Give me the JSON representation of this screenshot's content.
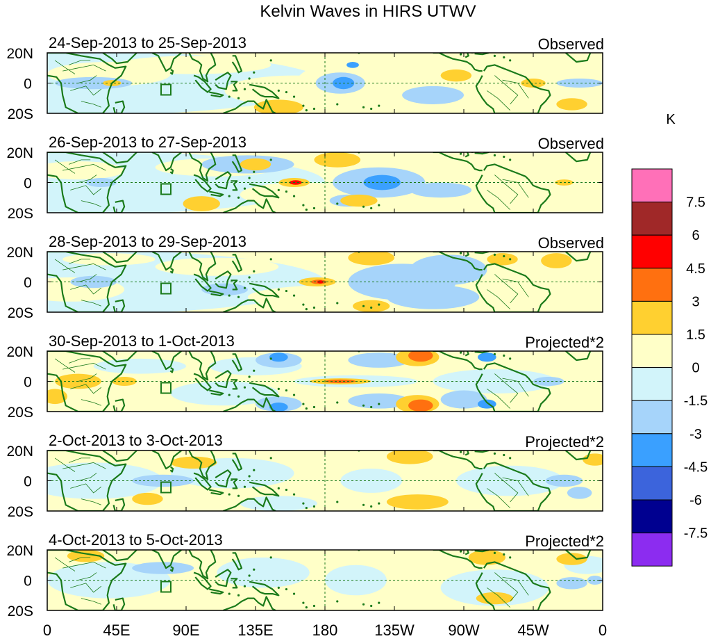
{
  "chart_data": {
    "type": "heatmap",
    "title": "Kelvin Waves in HIRS UTWV",
    "panels": [
      {
        "period": "24-Sep-2013 to 25-Sep-2013",
        "label": "Observed"
      },
      {
        "period": "26-Sep-2013 to 27-Sep-2013",
        "label": "Observed"
      },
      {
        "period": "28-Sep-2013 to 29-Sep-2013",
        "label": "Observed"
      },
      {
        "period": "30-Sep-2013 to 1-Oct-2013",
        "label": "Projected*2"
      },
      {
        "period": "2-Oct-2013 to 3-Oct-2013",
        "label": "Projected*2"
      },
      {
        "period": "4-Oct-2013 to 5-Oct-2013",
        "label": "Projected*2"
      }
    ],
    "x_ticks": [
      "0",
      "45E",
      "90E",
      "135E",
      "180",
      "135W",
      "90W",
      "45W",
      "0"
    ],
    "y_ticks": [
      "20N",
      "0",
      "20S"
    ],
    "colorbar": {
      "unit": "K",
      "levels": [
        "7.5",
        "6",
        "4.5",
        "3",
        "1.5",
        "0",
        "-1.5",
        "-3",
        "-4.5",
        "-6",
        "-7.5"
      ],
      "colors": [
        "#ff70b8",
        "#a02828",
        "#ff0000",
        "#ff7010",
        "#ffd030",
        "#ffffc8",
        "#d2f4fa",
        "#a6d4fa",
        "#3aa0ff",
        "#3c64dc",
        "#000090",
        "#8c2cf0"
      ]
    }
  }
}
